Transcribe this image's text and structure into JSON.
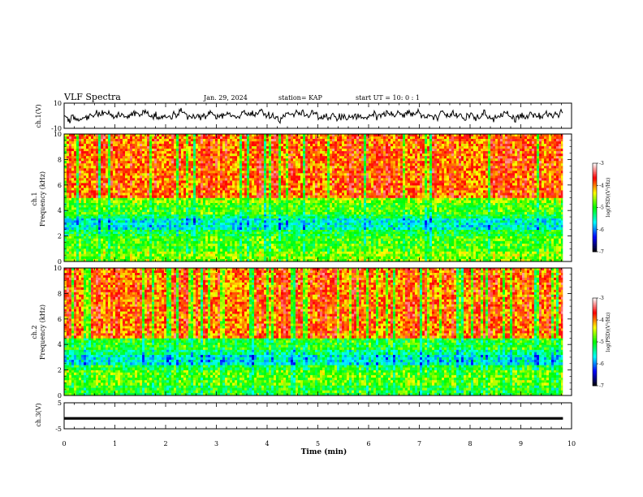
{
  "header": {
    "title": "VLF Spectra",
    "date": "Jan. 29, 2024",
    "station": "station= KAP",
    "start": "start  UT =   10: 0  : 1"
  },
  "chart_data": [
    {
      "type": "line",
      "panel": "ch1-waveform",
      "ylabel": "ch.1(V)",
      "ylim": [
        -10,
        10
      ],
      "yticks": [
        "10",
        "-10"
      ],
      "description_values": {
        "typical_range": [
          -6,
          6
        ],
        "mean": 0
      },
      "color": "#000000"
    },
    {
      "type": "heatmap",
      "panel": "ch1-spectrogram",
      "ylabel": "ch.1\nFrequency  (kHz)",
      "ylabel_line1": "ch.1",
      "ylabel_line2": "Frequency  (kHz)",
      "ylim": [
        0,
        10
      ],
      "yticks": [
        "0",
        "2",
        "4",
        "6",
        "8",
        "10"
      ],
      "bands_khz": [
        {
          "from": 0.0,
          "to": 0.8,
          "level": -4.7
        },
        {
          "from": 0.8,
          "to": 2.0,
          "level": -4.9
        },
        {
          "from": 2.0,
          "to": 2.5,
          "level": -5.1
        },
        {
          "from": 2.5,
          "to": 3.4,
          "level": -5.6
        },
        {
          "from": 3.4,
          "to": 3.7,
          "level": -5.2
        },
        {
          "from": 3.7,
          "to": 4.6,
          "level": -4.9
        },
        {
          "from": 4.6,
          "to": 5.0,
          "level": -4.7
        },
        {
          "from": 5.0,
          "to": 10.0,
          "level": -4.0
        }
      ],
      "colorbar": {
        "label": "log(PSD)(V²/Hz)",
        "range": [
          -7,
          -3
        ],
        "ticks": [
          "-3",
          "-4",
          "-5",
          "-6",
          "-7"
        ]
      }
    },
    {
      "type": "heatmap",
      "panel": "ch2-spectrogram",
      "ylabel_line1": "ch.2",
      "ylabel_line2": "Frequency  (kHz)",
      "ylim": [
        0,
        10
      ],
      "yticks": [
        "0",
        "2",
        "4",
        "6",
        "8",
        "10"
      ],
      "bands_khz": [
        {
          "from": 0.0,
          "to": 0.8,
          "level": -5.0
        },
        {
          "from": 0.8,
          "to": 2.0,
          "level": -4.8
        },
        {
          "from": 2.0,
          "to": 2.4,
          "level": -5.1
        },
        {
          "from": 2.4,
          "to": 3.2,
          "level": -5.6
        },
        {
          "from": 3.2,
          "to": 3.6,
          "level": -5.3
        },
        {
          "from": 3.6,
          "to": 4.5,
          "level": -5.0
        },
        {
          "from": 4.5,
          "to": 10.0,
          "level": -4.0
        }
      ],
      "colorbar": {
        "label": "log(PSD)(V²/Hz)",
        "range": [
          -7,
          -3
        ],
        "ticks": [
          "-3",
          "-4",
          "-5",
          "-6",
          "-7"
        ]
      }
    },
    {
      "type": "line",
      "panel": "ch3-waveform",
      "ylabel": "ch.3(V)",
      "ylim": [
        -5,
        5
      ],
      "yticks": [
        "5",
        "-5"
      ],
      "values_band": [
        -1.5,
        -0.5
      ],
      "color": "#000000"
    }
  ],
  "xaxis": {
    "label": "Time  (min)",
    "xlim": [
      0,
      10
    ],
    "ticks": [
      "0",
      "1",
      "2",
      "3",
      "4",
      "5",
      "6",
      "7",
      "8",
      "9",
      "10"
    ],
    "data_end_min": 9.83
  },
  "colorscale": [
    "#000000",
    "#0000ff",
    "#00ffff",
    "#00ff00",
    "#ffff00",
    "#ff0000",
    "#ffffff"
  ]
}
